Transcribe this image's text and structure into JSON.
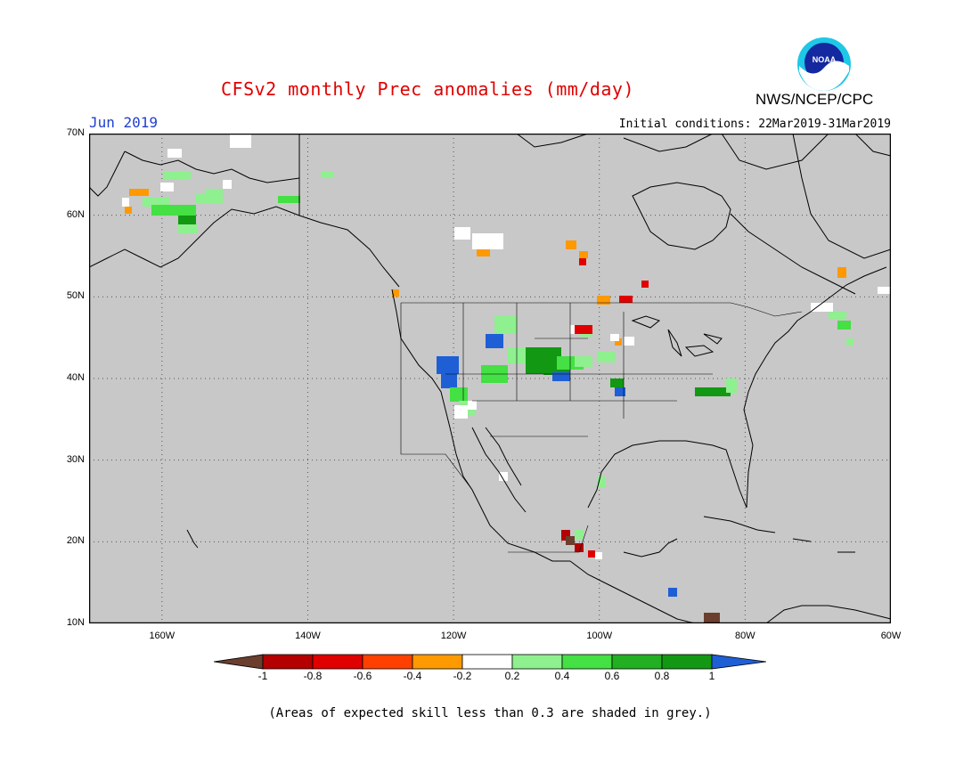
{
  "header": {
    "title": "CFSv2 monthly Prec anomalies (mm/day)",
    "agency": "NWS/NCEP/CPC",
    "period": "Jun 2019",
    "initial_conditions": "Initial conditions: 22Mar2019-31Mar2019",
    "logo_text": "NOAA"
  },
  "axes": {
    "lat_labels": [
      "70N",
      "60N",
      "50N",
      "40N",
      "30N",
      "20N",
      "10N"
    ],
    "lon_labels": [
      "160W",
      "140W",
      "120W",
      "100W",
      "80W",
      "60W"
    ],
    "lat_range": [
      10,
      70
    ],
    "lon_range": [
      -170,
      -60
    ]
  },
  "colorbar": {
    "labels": [
      "-1",
      "-0.8",
      "-0.6",
      "-0.4",
      "-0.2",
      "0.2",
      "0.4",
      "0.6",
      "0.8",
      "1"
    ],
    "colors": [
      "#6b3e2e",
      "#b40000",
      "#e00000",
      "#ff4000",
      "#ff9900",
      "#ffffff",
      "#8ef08e",
      "#44e044",
      "#22b022",
      "#129812",
      "#1f5fd6"
    ]
  },
  "footnote": "(Areas of expected skill less than 0.3 are shaded in grey.)",
  "colors": {
    "land_mask": "#c8c8c8",
    "title": "#e00000",
    "period": "#2040d0"
  }
}
